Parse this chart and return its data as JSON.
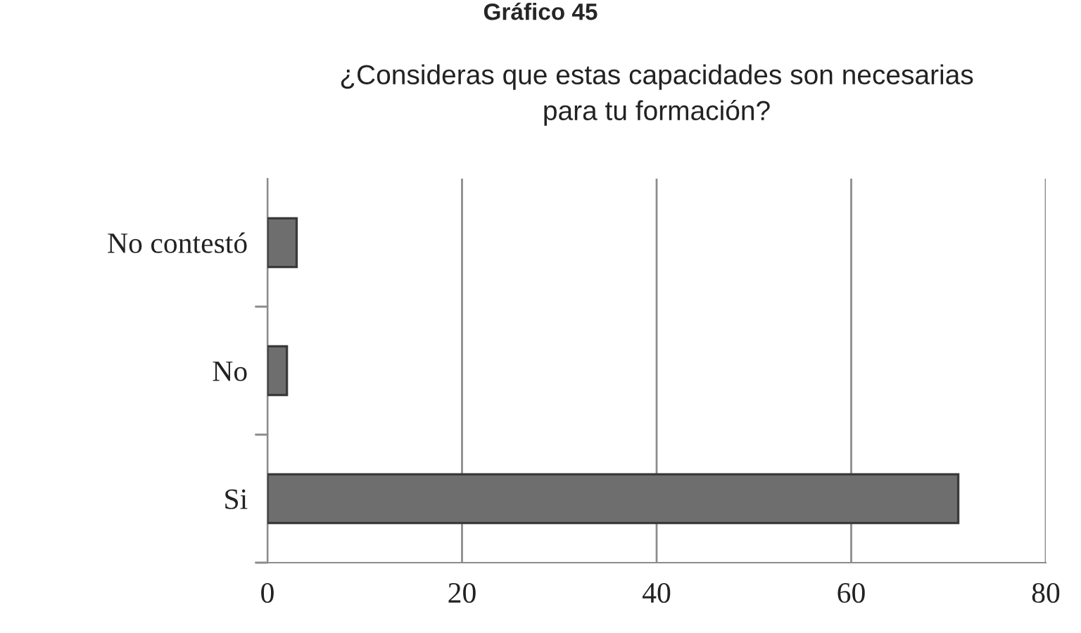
{
  "chart_data": {
    "type": "bar",
    "orientation": "horizontal",
    "title": "¿Consideras que estas capacidades son necesarias\npara tu formación?",
    "annotations": [
      "Gráfico 45"
    ],
    "categories": [
      "No contestó",
      "No",
      "Si"
    ],
    "values": [
      3,
      2,
      71
    ],
    "color": "#6e6e6e",
    "xlim": [
      0,
      80
    ],
    "xticks": [
      0,
      20,
      40,
      60,
      80
    ],
    "grid": "x"
  }
}
